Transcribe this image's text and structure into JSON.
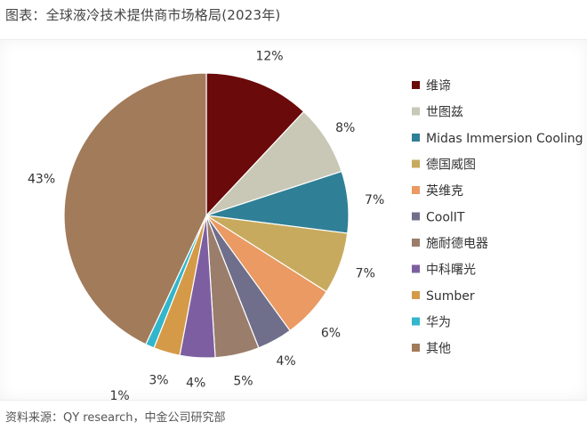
{
  "title": "图表：全球液冷技术提供商市场格局(2023年)",
  "source": "资料来源：QY research，中金公司研究部",
  "chart_data": {
    "type": "pie",
    "title": "图表：全球液冷技术提供商市场格局(2023年)",
    "unit": "%",
    "legend_position": "right",
    "slices": [
      {
        "label": "维谛",
        "value": 12,
        "display": "12%",
        "color": "#6b0a0a"
      },
      {
        "label": "世图兹",
        "value": 8,
        "display": "8%",
        "color": "#c9c8b7"
      },
      {
        "label": "Midas Immersion Cooling",
        "value": 7,
        "display": "7%",
        "color": "#2f7f96"
      },
      {
        "label": "德国威图",
        "value": 7,
        "display": "7%",
        "color": "#c8aa5e"
      },
      {
        "label": "英维克",
        "value": 6,
        "display": "6%",
        "color": "#ea9a62"
      },
      {
        "label": "CoolIT",
        "value": 4,
        "display": "4%",
        "color": "#6f6f8b"
      },
      {
        "label": "施耐德电器",
        "value": 5,
        "display": "5%",
        "color": "#9b7d6b"
      },
      {
        "label": "中科曙光",
        "value": 4,
        "display": "4%",
        "color": "#7d5fa1"
      },
      {
        "label": "Sumber",
        "value": 3,
        "display": "3%",
        "color": "#d59a47"
      },
      {
        "label": "华为",
        "value": 1,
        "display": "1%",
        "color": "#31b6cc"
      },
      {
        "label": "其他",
        "value": 43,
        "display": "43%",
        "color": "#a27b5b"
      }
    ]
  }
}
